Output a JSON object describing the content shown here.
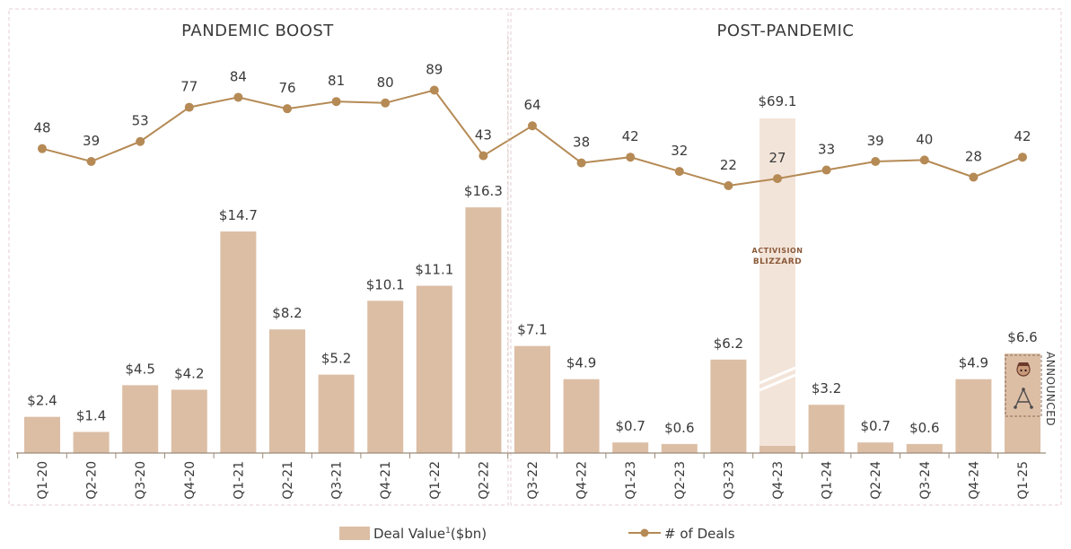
{
  "colors": {
    "bar": "#dcbea5",
    "line": "#b58a55",
    "axis": "#9a8a7a",
    "panel_border": "#e6cdd6",
    "highlight_band": "#f3e4d9",
    "text": "#3a3a3a"
  },
  "sections": [
    {
      "title": "PANDEMIC BOOST"
    },
    {
      "title": "POST-PANDEMIC"
    }
  ],
  "legend": {
    "bar_label": "Deal Value",
    "bar_superscript": "1",
    "bar_unit": "($bn)",
    "line_label": "# of Deals"
  },
  "annotations": {
    "activision_logo": "ACTIVISION BLIZZARD",
    "announced": "ANNOUNCED"
  },
  "chart_data": {
    "type": "bar",
    "categories": [
      "Q1-20",
      "Q2-20",
      "Q3-20",
      "Q4-20",
      "Q1-21",
      "Q2-21",
      "Q3-21",
      "Q4-21",
      "Q1-22",
      "Q2-22",
      "Q3-22",
      "Q4-22",
      "Q1-23",
      "Q2-23",
      "Q3-23",
      "Q4-23",
      "Q1-24",
      "Q2-24",
      "Q3-24",
      "Q4-24",
      "Q1-25"
    ],
    "series": [
      {
        "name": "Deal Value¹($bn)",
        "type": "bar",
        "values": [
          2.4,
          1.4,
          4.5,
          4.2,
          14.7,
          8.2,
          5.2,
          10.1,
          11.1,
          16.3,
          7.1,
          4.9,
          0.7,
          0.6,
          6.2,
          69.1,
          3.2,
          0.7,
          0.6,
          4.9,
          6.6
        ],
        "labels": [
          "$2.4",
          "$1.4",
          "$4.5",
          "$4.2",
          "$14.7",
          "$8.2",
          "$5.2",
          "$10.1",
          "$11.1",
          "$16.3",
          "$7.1",
          "$4.9",
          "$0.7",
          "$0.6",
          "$6.2",
          "$69.1",
          "$3.2",
          "$0.7",
          "$0.6",
          "$4.9",
          "$6.6"
        ]
      },
      {
        "name": "# of Deals",
        "type": "line",
        "values": [
          48,
          39,
          53,
          77,
          84,
          76,
          81,
          80,
          89,
          43,
          64,
          38,
          42,
          32,
          22,
          27,
          33,
          39,
          40,
          28,
          42
        ],
        "labels": [
          "48",
          "39",
          "53",
          "77",
          "84",
          "76",
          "81",
          "80",
          "89",
          "43",
          "64",
          "38",
          "42",
          "32",
          "22",
          "27",
          "33",
          "39",
          "40",
          "28",
          "42"
        ]
      }
    ],
    "bar_axis_broken_at": "Q4-23",
    "grid": false,
    "legend_position": "bottom-center"
  }
}
